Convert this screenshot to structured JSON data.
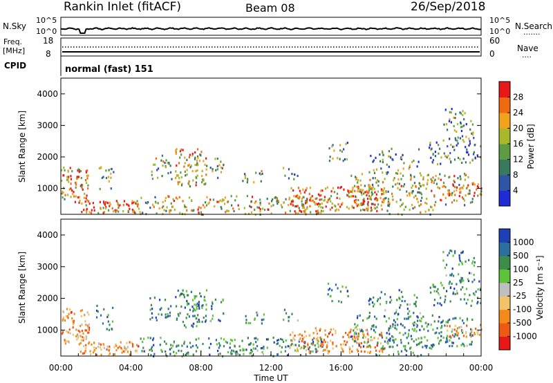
{
  "header": {
    "title": "Rankin Inlet (fitACF)",
    "beam": "Beam 08",
    "date": "26/Sep/2018"
  },
  "nsky_panel": {
    "left_label": "N.Sky",
    "right_label": "N.Search",
    "tick_labels": [
      "10^5",
      "10^0"
    ]
  },
  "freq_panel": {
    "left_label_1": "Freq.",
    "left_label_2": "[MHz]",
    "right_label": "Nave",
    "left_ticks": [
      "18",
      "8"
    ],
    "right_ticks": [
      "60",
      "0"
    ]
  },
  "cpid_panel": {
    "label": "CPID",
    "mode_text": "normal (fast) 151"
  },
  "chart_data": [
    {
      "type": "heatmap",
      "name": "power",
      "ylabel": "Slant Range [km]",
      "xlabel": "",
      "yticks": [
        "1000",
        "2000",
        "3000",
        "4000"
      ],
      "ylim": [
        180,
        4500
      ],
      "xlim_hours": [
        0,
        24
      ],
      "colorbar": {
        "label": "Power [dB]",
        "ticks": [
          "4",
          "8",
          "12",
          "16",
          "20",
          "24",
          "28"
        ],
        "colors": [
          "#1e2bd6",
          "#2f55a8",
          "#3a7a5c",
          "#5f9a45",
          "#a8b82a",
          "#f2a21c",
          "#f26a10",
          "#e81818"
        ]
      }
    },
    {
      "type": "heatmap",
      "name": "velocity",
      "ylabel": "Slant Range [km]",
      "xlabel": "Time UT",
      "yticks": [
        "1000",
        "2000",
        "3000",
        "4000"
      ],
      "ylim": [
        180,
        4500
      ],
      "xticks": [
        "00:00",
        "04:00",
        "08:00",
        "12:00",
        "16:00",
        "20:00",
        "00:00"
      ],
      "xlim_hours": [
        0,
        24
      ],
      "colorbar": {
        "label": "Velocity [m s⁻¹]",
        "ticks": [
          "1000",
          "500",
          "100",
          "25",
          "-25",
          "-100",
          "-500",
          "-1000"
        ],
        "colors": [
          "#1f3fb5",
          "#2c6e9e",
          "#3d8c4a",
          "#5ec23a",
          "#bfbfbf",
          "#f3c36a",
          "#f58a1a",
          "#ee5a14",
          "#e81818"
        ]
      }
    }
  ]
}
